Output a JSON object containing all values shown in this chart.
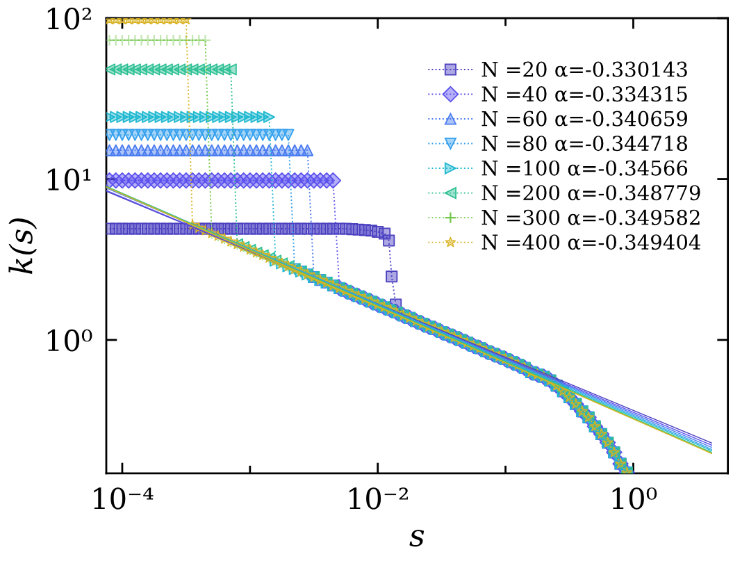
{
  "chart_data": {
    "type": "line",
    "xlabel": "s",
    "ylabel": "k(s)",
    "log": "xy",
    "grid": false,
    "legend": "top right",
    "xlim": [
      7.5e-05,
      5.5
    ],
    "ylim": [
      0.148,
      100
    ],
    "xticks": [
      {
        "value": 0.0001,
        "label": "10⁻⁴"
      },
      {
        "value": 0.001,
        "label": null
      },
      {
        "value": 0.01,
        "label": "10⁻²"
      },
      {
        "value": 0.1,
        "label": null
      },
      {
        "value": 1,
        "label": "10⁰"
      }
    ],
    "yticks": [
      {
        "value": 1,
        "label": "10⁰"
      },
      {
        "value": 10,
        "label": "10¹"
      },
      {
        "value": 100,
        "label": "10²"
      }
    ],
    "x": [
      7.943e-05,
      8.913e-05,
      0.0001,
      0.0001122,
      0.0001259,
      0.0001413,
      0.0001585,
      0.0001778,
      0.0001995,
      0.0002239,
      0.0002512,
      0.0002818,
      0.0003162,
      0.0003548,
      0.0003981,
      0.0004467,
      0.0005012,
      0.0005623,
      0.000631,
      0.0007079,
      0.0007943,
      0.0008913,
      0.001,
      0.001122,
      0.001259,
      0.001413,
      0.001585,
      0.001778,
      0.001995,
      0.002239,
      0.002512,
      0.002818,
      0.003162,
      0.003548,
      0.003981,
      0.004467,
      0.005012,
      0.005623,
      0.00631,
      0.007079,
      0.007943,
      0.008913,
      0.01,
      0.01122,
      0.01259,
      0.01413,
      0.01585,
      0.01778,
      0.01995,
      0.02239,
      0.02512,
      0.02818,
      0.03162,
      0.03548,
      0.03981,
      0.04467,
      0.05012,
      0.05623,
      0.0631,
      0.07079,
      0.07943,
      0.08913,
      0.1,
      0.1122,
      0.1259,
      0.1413,
      0.1585,
      0.1778,
      0.1995,
      0.2239,
      0.2512,
      0.2818,
      0.3162,
      0.3548,
      0.3981,
      0.4467,
      0.5012,
      0.5623,
      0.631,
      0.7079,
      0.7943,
      0.8913
    ],
    "series": [
      {
        "name": "N =20 α=-0.330143",
        "color": "#4a3fc0",
        "marker": "square",
        "line_style": "dotted",
        "x": [
          7.943e-05,
          8.913e-05,
          0.0001,
          0.0001122,
          0.0001259,
          0.0001413,
          0.0001585,
          0.0001778,
          0.0001995,
          0.0002239,
          0.0002512,
          0.0002818,
          0.0003162,
          0.0003548,
          0.0003981,
          0.0004467,
          0.0005012,
          0.0005623,
          0.000631,
          0.0007079,
          0.0007943,
          0.0008913,
          0.001,
          0.001122,
          0.001259,
          0.001413,
          0.001585,
          0.001778,
          0.001995,
          0.002239,
          0.002512,
          0.002818,
          0.003162,
          0.003548,
          0.003981,
          0.004467,
          0.005012,
          0.005623,
          0.00631,
          0.007079,
          0.007943,
          0.008913,
          0.01,
          0.01132,
          0.01222,
          0.01285,
          0.01384,
          0.01585,
          0.01778,
          0.01995,
          0.02239,
          0.02512,
          0.02818,
          0.03162,
          0.03548,
          0.03981,
          0.04467,
          0.05012,
          0.05623,
          0.0631,
          0.07079,
          0.07943,
          0.08913,
          0.1,
          0.1122,
          0.1259,
          0.1413,
          0.1585,
          0.1778,
          0.1995,
          0.2239,
          0.2512,
          0.2818,
          0.3162,
          0.3548,
          0.3981,
          0.4467,
          0.5012,
          0.5623,
          0.631,
          0.7079,
          0.7943,
          0.8913
        ],
        "values": [
          4.91,
          4.91,
          4.91,
          4.91,
          4.91,
          4.91,
          4.91,
          4.91,
          4.91,
          4.91,
          4.91,
          4.91,
          4.91,
          4.91,
          4.91,
          4.91,
          4.91,
          4.91,
          4.91,
          4.91,
          4.91,
          4.91,
          4.91,
          4.91,
          4.91,
          4.91,
          4.91,
          4.91,
          4.91,
          4.91,
          4.91,
          4.91,
          4.91,
          4.91,
          4.91,
          4.91,
          4.91,
          4.91,
          4.88,
          4.85,
          4.82,
          4.78,
          4.7,
          4.58,
          4.15,
          2.48,
          1.66,
          1.42,
          1.37,
          1.31,
          1.26,
          1.21,
          1.17,
          1.12,
          1.08,
          1.04,
          1.0,
          0.96,
          0.92,
          0.89,
          0.85,
          0.82,
          0.79,
          0.76,
          0.73,
          0.7,
          0.67,
          0.63,
          0.61,
          0.59,
          0.56,
          0.52,
          0.48,
          0.44,
          0.4,
          0.36,
          0.33,
          0.29,
          0.26,
          0.23,
          0.2,
          0.17,
          0.15
        ]
      },
      {
        "name": "N =40 α=-0.334315",
        "color": "#5a50ee",
        "marker": "diamond",
        "line_style": "dotted",
        "values": [
          9.8,
          9.8,
          9.8,
          9.8,
          9.8,
          9.8,
          9.8,
          9.8,
          9.8,
          9.8,
          9.8,
          9.8,
          9.8,
          9.8,
          9.8,
          9.8,
          9.8,
          9.8,
          9.8,
          9.8,
          9.8,
          9.8,
          9.8,
          9.8,
          9.8,
          9.8,
          9.8,
          9.8,
          9.8,
          9.8,
          9.8,
          9.8,
          9.8,
          9.8,
          9.8,
          9.8,
          2.1,
          2.02,
          1.94,
          1.87,
          1.8,
          1.73,
          1.66,
          1.6,
          1.54,
          1.48,
          1.42,
          1.37,
          1.31,
          1.26,
          1.21,
          1.17,
          1.12,
          1.08,
          1.04,
          1.0,
          0.96,
          0.92,
          0.89,
          0.85,
          0.82,
          0.79,
          0.76,
          0.73,
          0.7,
          0.67,
          0.63,
          0.61,
          0.59,
          0.56,
          0.52,
          0.48,
          0.44,
          0.4,
          0.36,
          0.33,
          0.29,
          0.26,
          0.23,
          0.2,
          0.17,
          0.15
        ]
      },
      {
        "name": "N =60 α=-0.340659",
        "color": "#4a7cf0",
        "marker": "triangle",
        "line_style": "dotted",
        "values": [
          15.1,
          15.1,
          15.1,
          15.1,
          15.1,
          15.1,
          15.1,
          15.1,
          15.1,
          15.1,
          15.1,
          15.1,
          15.1,
          15.1,
          15.1,
          15.1,
          15.1,
          15.1,
          15.1,
          15.1,
          15.1,
          15.1,
          15.1,
          15.1,
          15.1,
          15.1,
          15.1,
          15.1,
          15.1,
          15.1,
          15.1,
          15.1,
          2.46,
          2.36,
          2.27,
          2.18,
          2.1,
          2.02,
          1.94,
          1.87,
          1.8,
          1.73,
          1.66,
          1.6,
          1.54,
          1.48,
          1.42,
          1.37,
          1.31,
          1.26,
          1.21,
          1.17,
          1.12,
          1.08,
          1.04,
          1.0,
          0.96,
          0.92,
          0.89,
          0.85,
          0.82,
          0.79,
          0.76,
          0.73,
          0.7,
          0.67,
          0.63,
          0.61,
          0.59,
          0.56,
          0.52,
          0.48,
          0.44,
          0.4,
          0.36,
          0.33,
          0.29,
          0.26,
          0.23,
          0.2,
          0.17,
          0.15
        ]
      },
      {
        "name": "N =80 α=-0.344718",
        "color": "#35a0ee",
        "marker": "triangle-down",
        "line_style": "dotted",
        "values": [
          18.8,
          18.8,
          18.8,
          18.8,
          18.8,
          18.8,
          18.8,
          18.8,
          18.8,
          18.8,
          18.8,
          18.8,
          18.8,
          18.8,
          18.8,
          18.8,
          18.8,
          18.8,
          18.8,
          18.8,
          18.8,
          18.8,
          18.8,
          18.8,
          18.8,
          18.8,
          18.8,
          18.8,
          18.8,
          2.76,
          2.66,
          2.55,
          2.46,
          2.36,
          2.27,
          2.18,
          2.1,
          2.02,
          1.94,
          1.87,
          1.8,
          1.73,
          1.66,
          1.6,
          1.54,
          1.48,
          1.42,
          1.37,
          1.31,
          1.26,
          1.21,
          1.17,
          1.12,
          1.08,
          1.04,
          1.0,
          0.96,
          0.92,
          0.89,
          0.85,
          0.82,
          0.79,
          0.76,
          0.73,
          0.7,
          0.67,
          0.63,
          0.61,
          0.59,
          0.56,
          0.52,
          0.48,
          0.44,
          0.4,
          0.36,
          0.33,
          0.29,
          0.26,
          0.23,
          0.2,
          0.17,
          0.15
        ]
      },
      {
        "name": "N =100 α=-0.34566",
        "color": "#1fb8d0",
        "marker": "triangle-right",
        "line_style": "dotted",
        "values": [
          24.3,
          24.3,
          24.3,
          24.3,
          24.3,
          24.3,
          24.3,
          24.3,
          24.3,
          24.3,
          24.3,
          24.3,
          24.3,
          24.3,
          24.3,
          24.3,
          24.3,
          24.3,
          24.3,
          24.3,
          24.3,
          24.3,
          24.3,
          24.3,
          24.3,
          24.3,
          3.11,
          2.99,
          2.87,
          2.76,
          2.66,
          2.55,
          2.46,
          2.36,
          2.27,
          2.18,
          2.1,
          2.02,
          1.94,
          1.87,
          1.8,
          1.73,
          1.66,
          1.6,
          1.54,
          1.48,
          1.42,
          1.37,
          1.31,
          1.26,
          1.21,
          1.17,
          1.12,
          1.08,
          1.04,
          1.0,
          0.96,
          0.92,
          0.89,
          0.85,
          0.82,
          0.79,
          0.76,
          0.73,
          0.7,
          0.67,
          0.63,
          0.61,
          0.59,
          0.56,
          0.52,
          0.48,
          0.44,
          0.4,
          0.36,
          0.33,
          0.29,
          0.26,
          0.23,
          0.2,
          0.17,
          0.15
        ]
      },
      {
        "name": "N =200 α=-0.348779",
        "color": "#2fc094",
        "marker": "triangle-left",
        "line_style": "dotted",
        "values": [
          48,
          48,
          48,
          48,
          48,
          48,
          48,
          48,
          48,
          48,
          48,
          48,
          48,
          48,
          48,
          48,
          48,
          48,
          48,
          48,
          3.93,
          3.78,
          3.63,
          3.49,
          3.36,
          3.23,
          3.11,
          2.99,
          2.87,
          2.76,
          2.66,
          2.55,
          2.46,
          2.36,
          2.27,
          2.18,
          2.1,
          2.02,
          1.94,
          1.87,
          1.8,
          1.73,
          1.66,
          1.6,
          1.54,
          1.48,
          1.42,
          1.37,
          1.31,
          1.26,
          1.21,
          1.17,
          1.12,
          1.08,
          1.04,
          1.0,
          0.96,
          0.92,
          0.89,
          0.85,
          0.82,
          0.79,
          0.76,
          0.73,
          0.7,
          0.67,
          0.63,
          0.61,
          0.59,
          0.56,
          0.52,
          0.48,
          0.44,
          0.4,
          0.36,
          0.33,
          0.29,
          0.26,
          0.23,
          0.2,
          0.17,
          0.15
        ]
      },
      {
        "name": "N =300 α=-0.349582",
        "color": "#72c84a",
        "marker": "cross",
        "line_style": "dotted",
        "values": [
          73,
          73,
          73,
          73,
          73,
          73,
          73,
          73,
          73,
          73,
          73,
          73,
          73,
          73,
          73,
          73,
          4.59,
          4.42,
          4.25,
          4.08,
          3.93,
          3.78,
          3.63,
          3.49,
          3.36,
          3.23,
          3.11,
          2.99,
          2.87,
          2.76,
          2.66,
          2.55,
          2.46,
          2.36,
          2.27,
          2.18,
          2.1,
          2.02,
          1.94,
          1.87,
          1.8,
          1.73,
          1.66,
          1.6,
          1.54,
          1.48,
          1.42,
          1.37,
          1.31,
          1.26,
          1.21,
          1.17,
          1.12,
          1.08,
          1.04,
          1.0,
          0.96,
          0.92,
          0.89,
          0.85,
          0.82,
          0.79,
          0.76,
          0.73,
          0.7,
          0.67,
          0.63,
          0.61,
          0.59,
          0.56,
          0.52,
          0.48,
          0.44,
          0.4,
          0.36,
          0.33,
          0.29,
          0.26,
          0.23,
          0.2,
          0.17,
          0.15
        ]
      },
      {
        "name": "N =400 α=-0.349404",
        "color": "#d9b324",
        "marker": "star",
        "line_style": "dotted",
        "values": [
          98,
          98,
          98,
          98,
          98,
          98,
          98,
          98,
          98,
          98,
          98,
          98,
          98,
          5.17,
          4.97,
          4.78,
          4.59,
          4.42,
          4.25,
          4.08,
          3.93,
          3.78,
          3.63,
          3.49,
          3.36,
          3.23,
          3.11,
          2.99,
          2.87,
          2.76,
          2.66,
          2.55,
          2.46,
          2.36,
          2.27,
          2.18,
          2.1,
          2.02,
          1.94,
          1.87,
          1.8,
          1.73,
          1.66,
          1.6,
          1.54,
          1.48,
          1.42,
          1.37,
          1.31,
          1.26,
          1.21,
          1.17,
          1.12,
          1.08,
          1.04,
          1.0,
          0.96,
          0.92,
          0.89,
          0.85,
          0.82,
          0.79,
          0.76,
          0.73,
          0.7,
          0.67,
          0.63,
          0.61,
          0.59,
          0.56,
          0.52,
          0.48,
          0.44,
          0.4,
          0.36,
          0.33,
          0.29,
          0.26,
          0.23,
          0.2,
          0.17,
          0.15
        ]
      },
      {
        "color": "#4a3fc0",
        "marker": "none",
        "line_style": "solid",
        "x": [
          7.5e-05,
          4.1
        ],
        "values": [
          8.4,
          0.229
        ]
      },
      {
        "color": "#5a50ee",
        "marker": "none",
        "line_style": "solid",
        "x": [
          7.5e-05,
          4.1
        ],
        "values": [
          8.5,
          0.222
        ]
      },
      {
        "color": "#4a7cf0",
        "marker": "none",
        "line_style": "solid",
        "x": [
          7.5e-05,
          4.1
        ],
        "values": [
          8.8,
          0.215
        ]
      },
      {
        "color": "#35a0ee",
        "marker": "none",
        "line_style": "solid",
        "x": [
          7.5e-05,
          4.1
        ],
        "values": [
          9.0,
          0.209
        ]
      },
      {
        "color": "#1fb8d0",
        "marker": "none",
        "line_style": "solid",
        "x": [
          7.5e-05,
          4.1
        ],
        "values": [
          8.9,
          0.205
        ]
      },
      {
        "color": "#2fc094",
        "marker": "none",
        "line_style": "solid",
        "x": [
          7.5e-05,
          4.1
        ],
        "values": [
          9.0,
          0.2
        ]
      },
      {
        "color": "#72c84a",
        "marker": "none",
        "line_style": "solid",
        "x": [
          7.5e-05,
          4.1
        ],
        "values": [
          9.0,
          0.198
        ]
      },
      {
        "color": "#d9b324",
        "marker": "none",
        "line_style": "solid",
        "x": [
          7.5e-05,
          4.1
        ],
        "values": [
          8.9,
          0.197
        ]
      }
    ]
  }
}
